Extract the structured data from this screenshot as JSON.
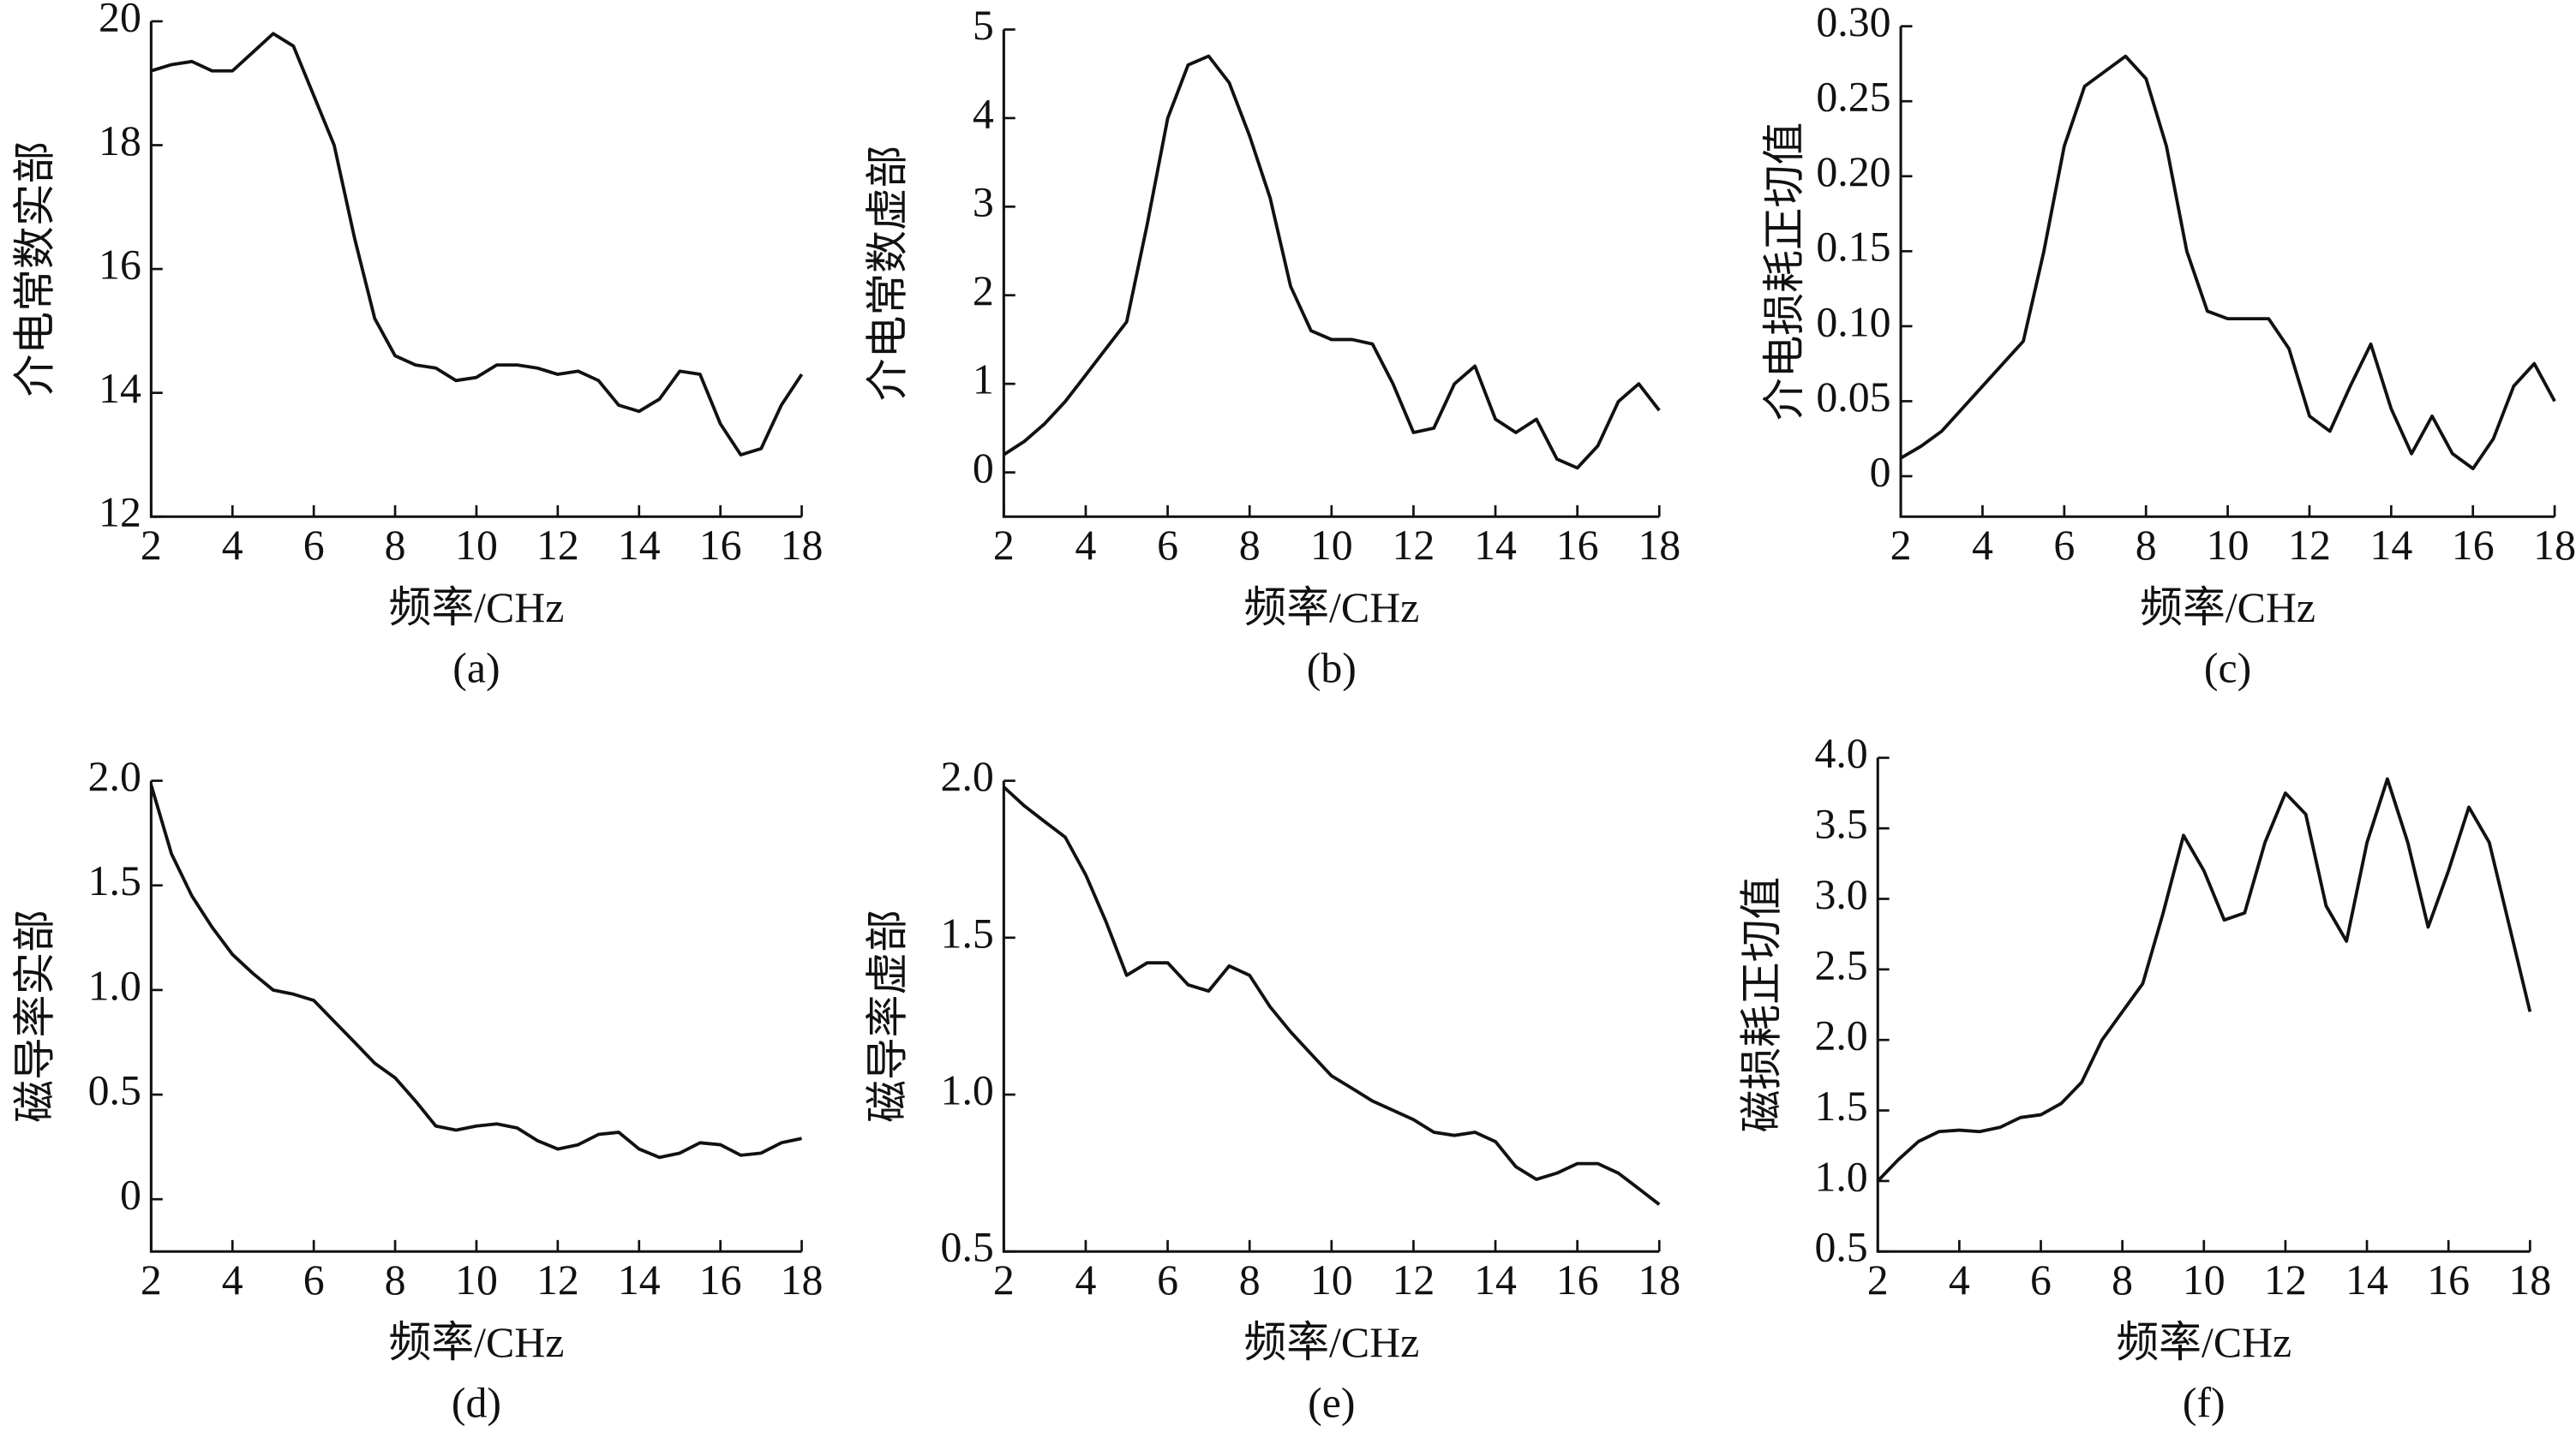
{
  "chart_data": [
    {
      "type": "line",
      "caption": "(a)",
      "xlabel": "频率/CHz",
      "ylabel": "介电常数实部",
      "xlim": [
        2,
        18
      ],
      "ylim": [
        12,
        20
      ],
      "xticks": [
        2,
        4,
        6,
        8,
        10,
        12,
        14,
        16,
        18
      ],
      "yticks": [
        12,
        14,
        16,
        18,
        20
      ],
      "color": "#111111",
      "x": [
        2,
        2.5,
        3,
        3.5,
        4,
        4.5,
        5,
        5.5,
        6,
        6.5,
        7,
        7.5,
        8,
        8.5,
        9,
        9.5,
        10,
        10.5,
        11,
        11.5,
        12,
        12.5,
        13,
        13.5,
        14,
        14.5,
        15,
        15.5,
        16,
        16.5,
        17,
        17.5,
        18
      ],
      "values": [
        19.2,
        19.3,
        19.35,
        19.2,
        19.2,
        19.5,
        19.8,
        19.6,
        18.8,
        18.0,
        16.5,
        15.2,
        14.6,
        14.45,
        14.4,
        14.2,
        14.25,
        14.45,
        14.45,
        14.4,
        14.3,
        14.35,
        14.2,
        13.8,
        13.7,
        13.9,
        14.35,
        14.3,
        13.5,
        13.0,
        13.1,
        13.8,
        14.3
      ]
    },
    {
      "type": "line",
      "caption": "(b)",
      "xlabel": "频率/CHz",
      "ylabel": "介电常数虚部",
      "xlim": [
        2,
        18
      ],
      "ylim": [
        -0.5,
        5
      ],
      "xticks": [
        2,
        4,
        6,
        8,
        10,
        12,
        14,
        16,
        18
      ],
      "yticks": [
        0,
        1,
        2,
        3,
        4,
        5
      ],
      "color": "#111111",
      "x": [
        2,
        2.5,
        3,
        3.5,
        4,
        4.5,
        5,
        5.5,
        6,
        6.5,
        7,
        7.5,
        8,
        8.5,
        9,
        9.5,
        10,
        10.5,
        11,
        11.5,
        12,
        12.5,
        13,
        13.5,
        14,
        14.5,
        15,
        15.5,
        16,
        16.5,
        17,
        17.5,
        18
      ],
      "values": [
        0.2,
        0.35,
        0.55,
        0.8,
        1.1,
        1.4,
        1.7,
        2.8,
        4.0,
        4.6,
        4.7,
        4.4,
        3.8,
        3.1,
        2.1,
        1.6,
        1.5,
        1.5,
        1.45,
        1.0,
        0.45,
        0.5,
        1.0,
        1.2,
        0.6,
        0.45,
        0.6,
        0.15,
        0.05,
        0.3,
        0.8,
        1.0,
        0.7
      ]
    },
    {
      "type": "line",
      "caption": "(c)",
      "xlabel": "频率/CHz",
      "ylabel": "介电损耗正切值",
      "xlim": [
        2,
        18
      ],
      "ylim": [
        -0.027,
        0.3
      ],
      "xticks": [
        2,
        4,
        6,
        8,
        10,
        12,
        14,
        16,
        18
      ],
      "yticks": [
        0,
        0.05,
        {
          "value": 0.1,
          "label": "0.10"
        },
        0.15,
        {
          "value": 0.2,
          "label": "0.20"
        },
        0.25,
        {
          "value": 0.3,
          "label": "0.30"
        }
      ],
      "color": "#111111",
      "x": [
        2,
        2.5,
        3,
        3.5,
        4,
        4.5,
        5,
        5.5,
        6,
        6.5,
        7,
        7.5,
        8,
        8.5,
        9,
        9.5,
        10,
        10.5,
        11,
        11.5,
        12,
        12.5,
        13,
        13.5,
        14,
        14.5,
        15,
        15.5,
        16,
        16.5,
        17,
        17.5,
        18
      ],
      "values": [
        0.012,
        0.02,
        0.03,
        0.045,
        0.06,
        0.075,
        0.09,
        0.15,
        0.22,
        0.26,
        0.27,
        0.28,
        0.265,
        0.22,
        0.15,
        0.11,
        0.105,
        0.105,
        0.105,
        0.085,
        0.04,
        0.03,
        0.06,
        0.088,
        0.045,
        0.015,
        0.04,
        0.015,
        0.005,
        0.025,
        0.06,
        0.075,
        0.05
      ]
    },
    {
      "type": "line",
      "caption": "(d)",
      "xlabel": "频率/CHz",
      "ylabel": "磁导率实部",
      "xlim": [
        2,
        18
      ],
      "ylim": [
        -0.25,
        2.0
      ],
      "xticks": [
        2,
        4,
        6,
        8,
        10,
        12,
        14,
        16,
        18
      ],
      "yticks": [
        0,
        0.5,
        {
          "value": 1.0,
          "label": "1.0"
        },
        1.5,
        {
          "value": 2.0,
          "label": "2.0"
        }
      ],
      "color": "#111111",
      "x": [
        2,
        2.5,
        3,
        3.5,
        4,
        4.5,
        5,
        5.5,
        6,
        6.5,
        7,
        7.5,
        8,
        8.5,
        9,
        9.5,
        10,
        10.5,
        11,
        11.5,
        12,
        12.5,
        13,
        13.5,
        14,
        14.5,
        15,
        15.5,
        16,
        16.5,
        17,
        17.5,
        18
      ],
      "values": [
        1.98,
        1.65,
        1.45,
        1.3,
        1.17,
        1.08,
        1.0,
        0.98,
        0.95,
        0.85,
        0.75,
        0.65,
        0.58,
        0.47,
        0.35,
        0.33,
        0.35,
        0.36,
        0.34,
        0.28,
        0.24,
        0.26,
        0.31,
        0.32,
        0.24,
        0.2,
        0.22,
        0.27,
        0.26,
        0.21,
        0.22,
        0.27,
        0.29
      ]
    },
    {
      "type": "line",
      "caption": "(e)",
      "xlabel": "频率/CHz",
      "ylabel": "磁导率虚部",
      "xlim": [
        2,
        18
      ],
      "ylim": [
        0.5,
        2.0
      ],
      "xticks": [
        2,
        4,
        6,
        8,
        10,
        12,
        14,
        16,
        18
      ],
      "yticks": [
        0.5,
        {
          "value": 1.0,
          "label": "1.0"
        },
        1.5,
        {
          "value": 2.0,
          "label": "2.0"
        }
      ],
      "color": "#111111",
      "x": [
        2,
        2.5,
        3,
        3.5,
        4,
        4.5,
        5,
        5.5,
        6,
        6.5,
        7,
        7.5,
        8,
        8.5,
        9,
        9.5,
        10,
        10.5,
        11,
        11.5,
        12,
        12.5,
        13,
        13.5,
        14,
        14.5,
        15,
        15.5,
        16,
        16.5,
        17,
        17.5,
        18
      ],
      "values": [
        1.98,
        1.92,
        1.87,
        1.82,
        1.7,
        1.55,
        1.38,
        1.42,
        1.42,
        1.35,
        1.33,
        1.41,
        1.38,
        1.28,
        1.2,
        1.13,
        1.06,
        1.02,
        0.98,
        0.95,
        0.92,
        0.88,
        0.87,
        0.88,
        0.85,
        0.77,
        0.73,
        0.75,
        0.78,
        0.78,
        0.75,
        0.7,
        0.65
      ]
    },
    {
      "type": "line",
      "caption": "(f)",
      "xlabel": "频率/CHz",
      "ylabel": "磁损耗正切值",
      "xlim": [
        2,
        18
      ],
      "ylim": [
        0.5,
        4.0
      ],
      "xticks": [
        2,
        4,
        6,
        8,
        10,
        12,
        14,
        16,
        18
      ],
      "yticks": [
        0.5,
        {
          "value": 1.0,
          "label": "1.0"
        },
        1.5,
        {
          "value": 2.0,
          "label": "2.0"
        },
        2.5,
        {
          "value": 3.0,
          "label": "3.0"
        },
        3.5,
        {
          "value": 4.0,
          "label": "4.0"
        }
      ],
      "color": "#111111",
      "x": [
        2,
        2.5,
        3,
        3.5,
        4,
        4.5,
        5,
        5.5,
        6,
        6.5,
        7,
        7.5,
        8,
        8.5,
        9,
        9.5,
        10,
        10.5,
        11,
        11.5,
        12,
        12.5,
        13,
        13.5,
        14,
        14.5,
        15,
        15.5,
        16,
        16.5,
        17,
        17.5,
        18
      ],
      "values": [
        1.0,
        1.15,
        1.28,
        1.35,
        1.36,
        1.35,
        1.38,
        1.45,
        1.47,
        1.55,
        1.7,
        2.0,
        2.2,
        2.4,
        2.9,
        3.45,
        3.2,
        2.85,
        2.9,
        3.4,
        3.75,
        3.6,
        2.95,
        2.7,
        3.4,
        3.85,
        3.4,
        2.8,
        3.2,
        3.65,
        3.4,
        2.8,
        2.2
      ]
    }
  ]
}
